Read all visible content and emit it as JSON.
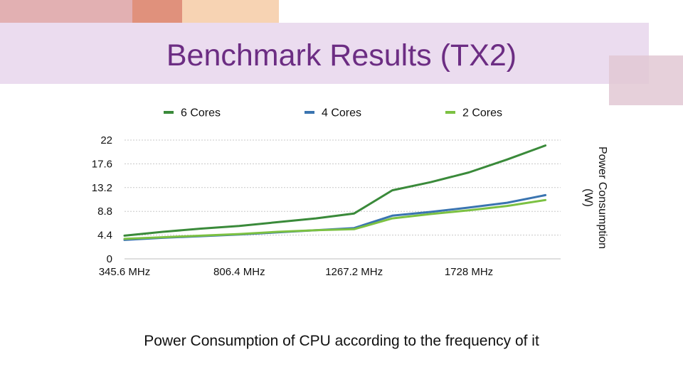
{
  "slide": {
    "title": "Benchmark Results (TX2)",
    "caption": "Power Consumption of CPU according to the frequency of it"
  },
  "colors": {
    "title": "#6c2d83",
    "deco_band": "#ebdcef",
    "grid": "#c8c8c8"
  },
  "chart_data": {
    "type": "line",
    "title": "",
    "xlabel": "",
    "ylabel": "Power Consumption (W)",
    "ylabel_lines": [
      "Power Consumption",
      "(W)"
    ],
    "ylabel_position": "right",
    "legend_position": "top",
    "grid": true,
    "ylim": [
      0,
      22
    ],
    "yticks": [
      0,
      4.4,
      8.8,
      13.2,
      17.6,
      22
    ],
    "ytick_labels": [
      "0",
      "4.4",
      "8.8",
      "13.2",
      "17.6",
      "22"
    ],
    "xlim": [
      345.6,
      2073.6
    ],
    "xticks": [
      345.6,
      806.4,
      1267.2,
      1728
    ],
    "xtick_labels": [
      "345.6 MHz",
      "806.4 MHz",
      "1267.2 MHz",
      "1728 MHz"
    ],
    "x": [
      345.6,
      499.2,
      652.8,
      806.4,
      960,
      1113.6,
      1267.2,
      1420.8,
      1574.4,
      1728,
      1881.6,
      2035.2
    ],
    "series": [
      {
        "name": "6 Cores",
        "color": "#3a8a3a",
        "values": [
          4.3,
          5.0,
          5.6,
          6.1,
          6.8,
          7.5,
          8.4,
          12.7,
          14.2,
          16.0,
          18.4,
          21.0
        ]
      },
      {
        "name": "4 Cores",
        "color": "#3a74b0",
        "values": [
          3.5,
          3.9,
          4.2,
          4.5,
          4.9,
          5.3,
          5.7,
          8.0,
          8.7,
          9.5,
          10.4,
          11.8
        ]
      },
      {
        "name": "2 Cores",
        "color": "#7cc142",
        "values": [
          3.7,
          4.0,
          4.3,
          4.6,
          5.0,
          5.3,
          5.5,
          7.5,
          8.3,
          9.0,
          9.8,
          10.9
        ]
      }
    ]
  }
}
